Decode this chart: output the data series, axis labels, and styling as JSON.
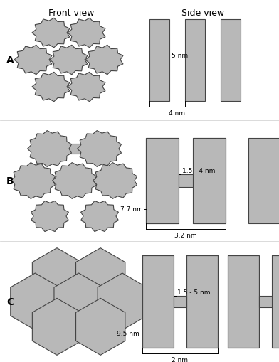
{
  "bg_color": "#ffffff",
  "shape_fill": "#b8b8b8",
  "shape_edge": "#444444",
  "lw": 0.8,
  "title_fontsize": 9,
  "annot_fontsize": 6.5,
  "section_label_fontsize": 10,
  "front_view_title": "Front view",
  "side_view_title": "Side view",
  "labels": [
    "A",
    "B",
    "C"
  ],
  "A_side": {
    "h_label": "5 nm",
    "w_label": "4 nm"
  },
  "B_side": {
    "gap_label": "1.5 - 4 nm",
    "h_label": "7.7 nm",
    "w_label": "3.2 nm"
  },
  "C_side": {
    "gap_label": "1.5 - 5 nm",
    "h_label": "9.5 nm",
    "w_label": "2 nm"
  }
}
